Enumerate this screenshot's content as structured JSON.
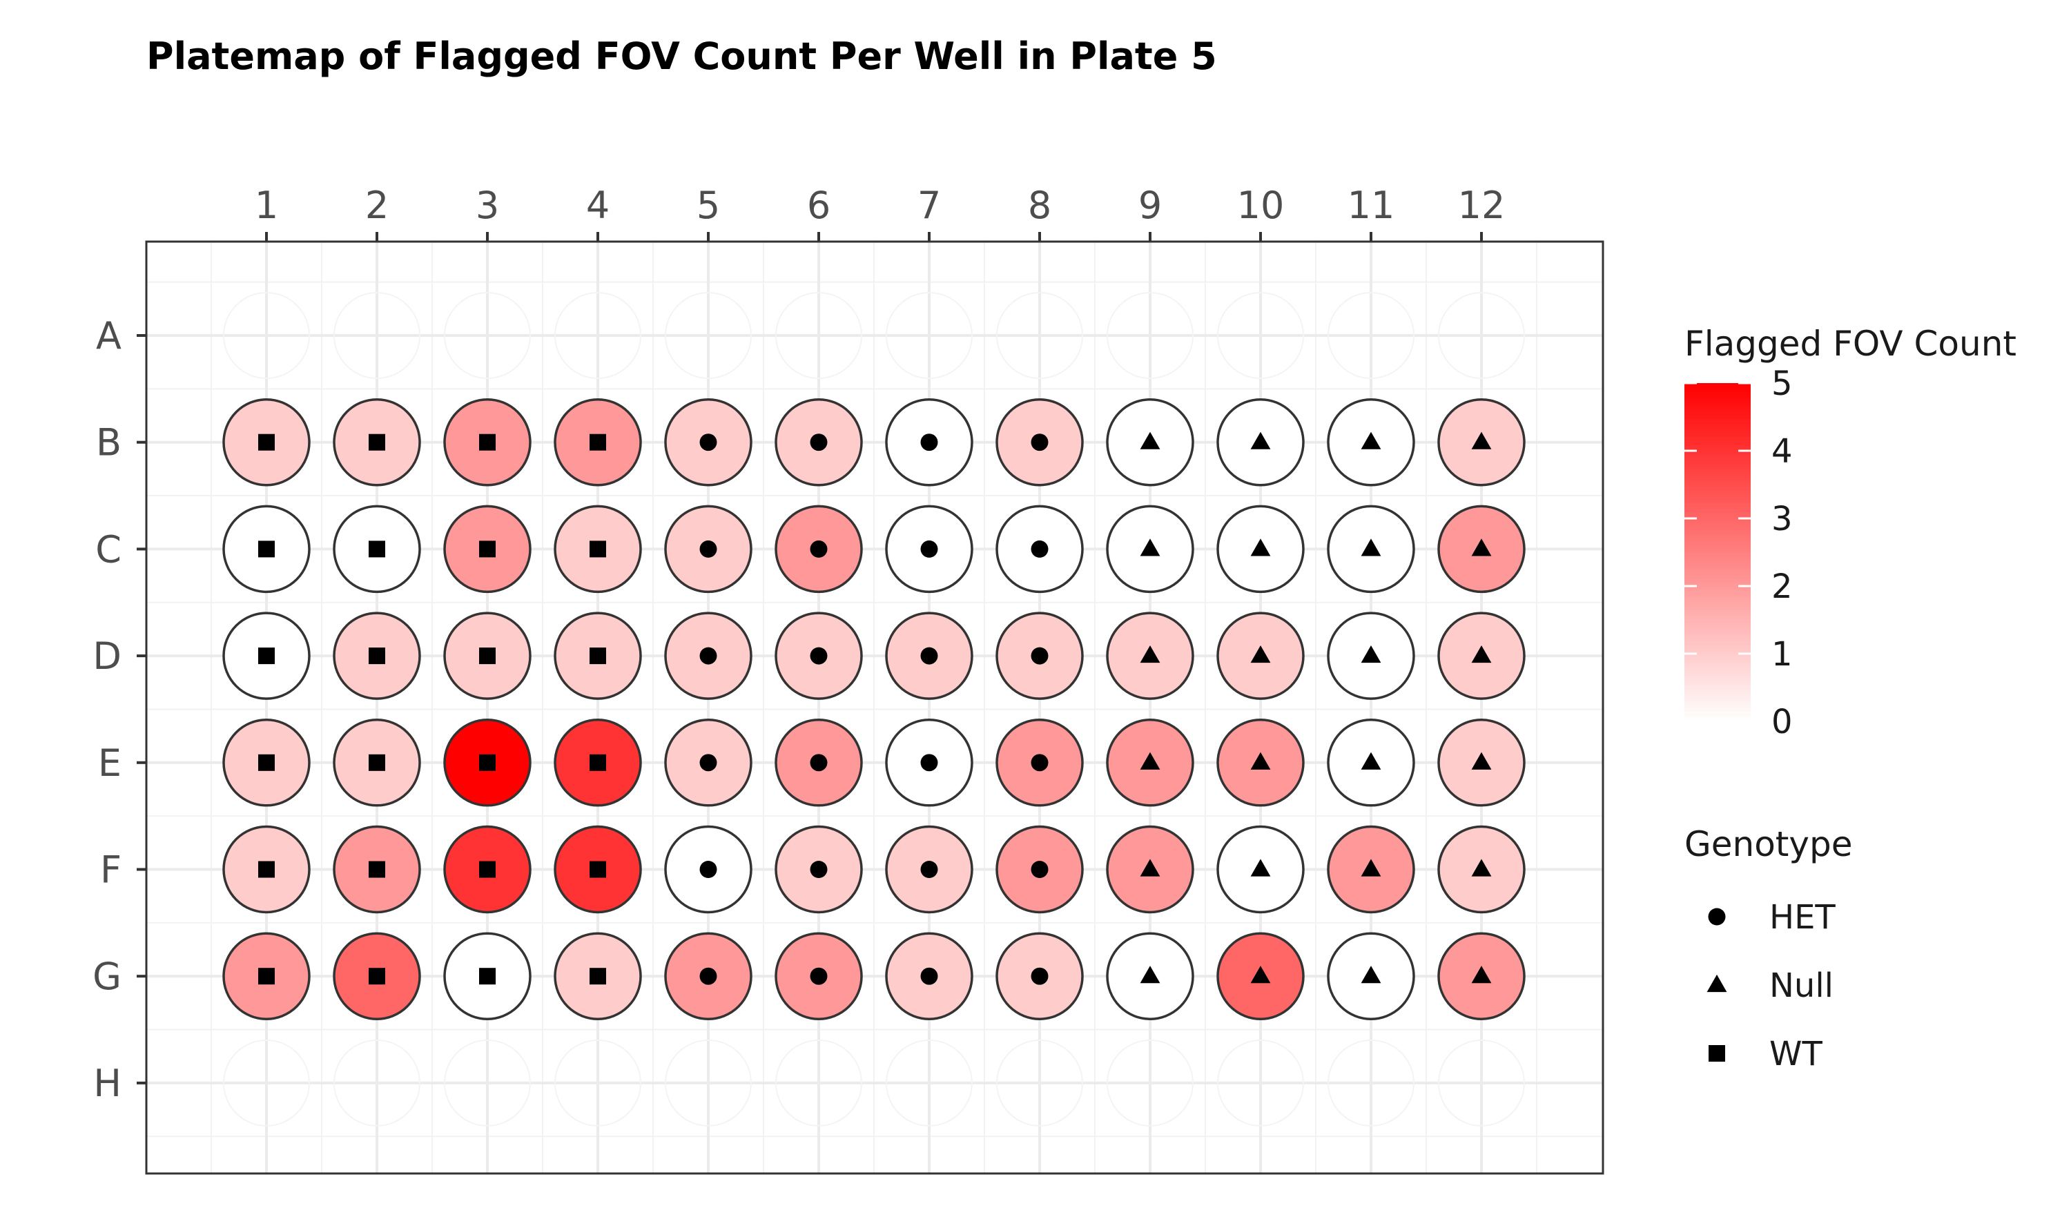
{
  "chart_data": {
    "type": "heatmap",
    "title": "Platemap of Flagged FOV Count Per Well in Plate 5",
    "columns": [
      "1",
      "2",
      "3",
      "4",
      "5",
      "6",
      "7",
      "8",
      "9",
      "10",
      "11",
      "12"
    ],
    "rows": [
      "A",
      "B",
      "C",
      "D",
      "E",
      "F",
      "G",
      "H"
    ],
    "genotype_by_column": [
      "WT",
      "WT",
      "WT",
      "WT",
      "HET",
      "HET",
      "HET",
      "HET",
      "Null",
      "Null",
      "Null",
      "Null"
    ],
    "values": {
      "B": [
        1,
        1,
        2,
        2,
        1,
        1,
        0,
        1,
        0,
        0,
        0,
        1
      ],
      "C": [
        0,
        0,
        2,
        1,
        1,
        2,
        0,
        0,
        0,
        0,
        0,
        2
      ],
      "D": [
        0,
        1,
        1,
        1,
        1,
        1,
        1,
        1,
        1,
        1,
        0,
        1
      ],
      "E": [
        1,
        1,
        5,
        4,
        1,
        2,
        0,
        2,
        2,
        2,
        0,
        1
      ],
      "F": [
        1,
        2,
        4,
        4,
        0,
        1,
        1,
        2,
        2,
        0,
        2,
        1
      ],
      "G": [
        2,
        3,
        0,
        1,
        2,
        2,
        1,
        1,
        0,
        3,
        0,
        2
      ]
    },
    "color_scale": {
      "title": "Flagged FOV Count",
      "min": 0,
      "max": 5,
      "ticks": [
        "0",
        "1",
        "2",
        "3",
        "4",
        "5"
      ],
      "low_color": "#ffffff",
      "high_color": "#ff0000"
    },
    "shape_legend": {
      "title": "Genotype",
      "entries": [
        {
          "label": "HET",
          "shape": "circle"
        },
        {
          "label": "Null",
          "shape": "triangle"
        },
        {
          "label": "WT",
          "shape": "square"
        }
      ]
    },
    "grid": true,
    "legend_position": "right"
  }
}
